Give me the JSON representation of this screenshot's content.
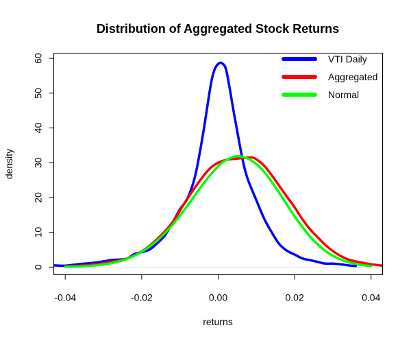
{
  "chart_data": {
    "type": "line",
    "title": "Distribution of Aggregated Stock Returns",
    "xlabel": "returns",
    "ylabel": "density",
    "xlim": [
      -0.043,
      0.043
    ],
    "ylim": [
      -2.2,
      61.5
    ],
    "x_ticks": [
      -0.04,
      -0.02,
      0.0,
      0.02,
      0.04
    ],
    "x_tick_labels": [
      "-0.04",
      "-0.02",
      "0.00",
      "0.02",
      "0.04"
    ],
    "y_ticks": [
      0,
      10,
      20,
      30,
      40,
      50,
      60
    ],
    "y_tick_labels": [
      "0",
      "10",
      "20",
      "30",
      "40",
      "50",
      "60"
    ],
    "grid": false,
    "legend_position": "top-right",
    "series": [
      {
        "name": "VTI Daily",
        "color": "#0000ff",
        "x": [
          -0.043,
          -0.04,
          -0.036,
          -0.032,
          -0.028,
          -0.024,
          -0.022,
          -0.02,
          -0.018,
          -0.016,
          -0.014,
          -0.012,
          -0.01,
          -0.008,
          -0.006,
          -0.004,
          -0.002,
          -0.001,
          0.0,
          0.001,
          0.002,
          0.003,
          0.004,
          0.005,
          0.006,
          0.007,
          0.008,
          0.01,
          0.012,
          0.014,
          0.016,
          0.018,
          0.02,
          0.022,
          0.024,
          0.026,
          0.028,
          0.03,
          0.032,
          0.034,
          0.036
        ],
        "values": [
          0.5,
          0.4,
          0.9,
          1.3,
          2.0,
          2.4,
          3.7,
          4.3,
          5.0,
          6.8,
          9.0,
          12.6,
          16.6,
          19.8,
          26.3,
          38.0,
          52.0,
          56.6,
          58.4,
          58.6,
          57.0,
          51.5,
          45.0,
          39.0,
          33.0,
          28.0,
          24.5,
          19.2,
          14.0,
          10.0,
          6.6,
          4.7,
          3.6,
          2.5,
          2.0,
          1.5,
          1.0,
          1.0,
          0.8,
          0.5,
          0.3
        ]
      },
      {
        "name": "Aggregated",
        "color": "#ff0000",
        "x": [
          -0.04,
          -0.036,
          -0.032,
          -0.028,
          -0.024,
          -0.02,
          -0.016,
          -0.012,
          -0.008,
          -0.004,
          -0.002,
          0.0,
          0.002,
          0.004,
          0.006,
          0.008,
          0.009,
          0.01,
          0.012,
          0.014,
          0.016,
          0.018,
          0.02,
          0.022,
          0.024,
          0.026,
          0.028,
          0.03,
          0.032,
          0.034,
          0.036,
          0.038,
          0.04,
          0.043
        ],
        "values": [
          0.2,
          0.4,
          0.8,
          1.5,
          2.4,
          4.5,
          8.0,
          12.8,
          19.8,
          26.0,
          28.5,
          30.0,
          30.8,
          31.1,
          31.3,
          31.5,
          31.5,
          31.0,
          29.2,
          26.4,
          23.3,
          20.2,
          17.2,
          13.8,
          10.9,
          8.6,
          6.4,
          4.6,
          3.2,
          2.2,
          1.6,
          1.2,
          0.8,
          0.4
        ]
      },
      {
        "name": "Normal",
        "color": "#00ff00",
        "x": [
          -0.04,
          -0.036,
          -0.032,
          -0.028,
          -0.024,
          -0.02,
          -0.016,
          -0.012,
          -0.008,
          -0.004,
          0.0,
          0.002,
          0.004,
          0.005,
          0.006,
          0.008,
          0.01,
          0.012,
          0.014,
          0.016,
          0.02,
          0.024,
          0.028,
          0.032,
          0.036,
          0.04
        ],
        "values": [
          0.1,
          0.2,
          0.5,
          1.1,
          2.3,
          4.4,
          7.6,
          12.1,
          17.7,
          23.8,
          29.0,
          30.7,
          31.7,
          31.9,
          31.8,
          31.1,
          29.6,
          27.4,
          24.5,
          21.3,
          14.6,
          8.8,
          4.7,
          2.2,
          0.9,
          0.3
        ]
      }
    ]
  }
}
